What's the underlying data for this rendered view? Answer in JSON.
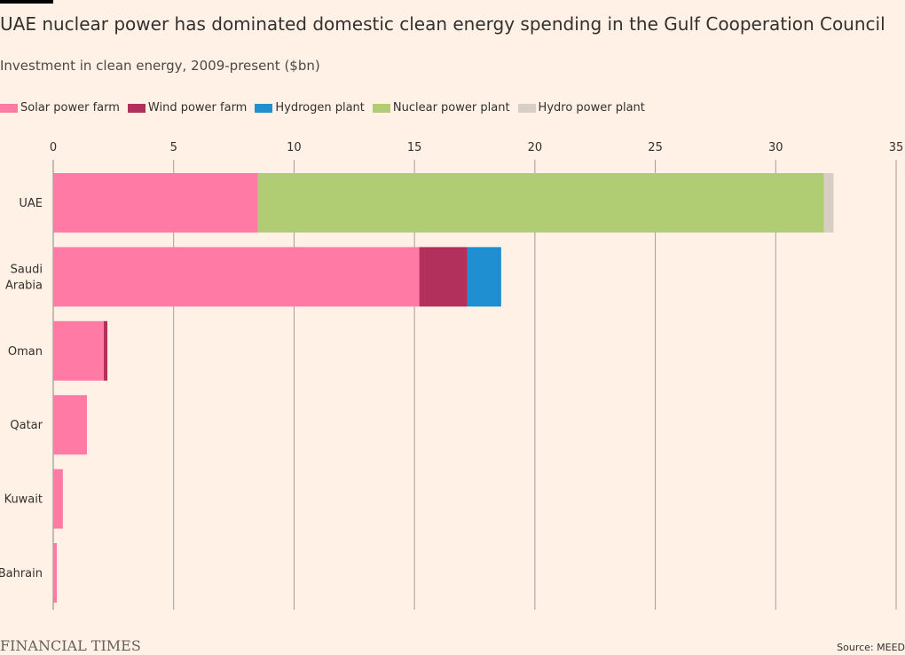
{
  "header": {
    "title": "UAE nuclear power has dominated domestic clean energy spending in the Gulf Cooperation Council",
    "subtitle": "Investment in clean energy, 2009-present ($bn)"
  },
  "footer": {
    "brand": "FINANCIAL TIMES",
    "source": "Source: MEED"
  },
  "chart_data": {
    "type": "bar",
    "orientation": "horizontal",
    "stacked": true,
    "title": "UAE nuclear power has dominated domestic clean energy spending in the Gulf Cooperation Council",
    "subtitle": "Investment in clean energy, 2009-present ($bn)",
    "xlabel": "",
    "ylabel": "",
    "xlim": [
      0,
      35
    ],
    "xticks": [
      0,
      5,
      10,
      15,
      20,
      25,
      30,
      35
    ],
    "grid": true,
    "legend_position": "top",
    "categories": [
      {
        "id": "uae",
        "lines": [
          "UAE"
        ]
      },
      {
        "id": "saudi-arabia",
        "lines": [
          "Saudi",
          "Arabia"
        ]
      },
      {
        "id": "oman",
        "lines": [
          "Oman"
        ]
      },
      {
        "id": "qatar",
        "lines": [
          "Qatar"
        ]
      },
      {
        "id": "kuwait",
        "lines": [
          "Kuwait"
        ]
      },
      {
        "id": "bahrain",
        "lines": [
          "Bahrain"
        ]
      }
    ],
    "series": [
      {
        "name": "Solar power farm",
        "color": "#ff7ba6",
        "values": [
          8.5,
          15.2,
          2.1,
          1.4,
          0.4,
          0.15
        ]
      },
      {
        "name": "Wind power farm",
        "color": "#b1305c",
        "values": [
          0,
          2.0,
          0.15,
          0,
          0,
          0
        ]
      },
      {
        "name": "Hydrogen plant",
        "color": "#1f8fd1",
        "values": [
          0,
          1.4,
          0,
          0,
          0,
          0
        ]
      },
      {
        "name": "Nuclear power plant",
        "color": "#b0cd73",
        "values": [
          23.5,
          0,
          0,
          0,
          0,
          0
        ]
      },
      {
        "name": "Hydro power plant",
        "color": "#d7cfc6",
        "values": [
          0.4,
          0,
          0,
          0,
          0,
          0
        ]
      }
    ]
  }
}
